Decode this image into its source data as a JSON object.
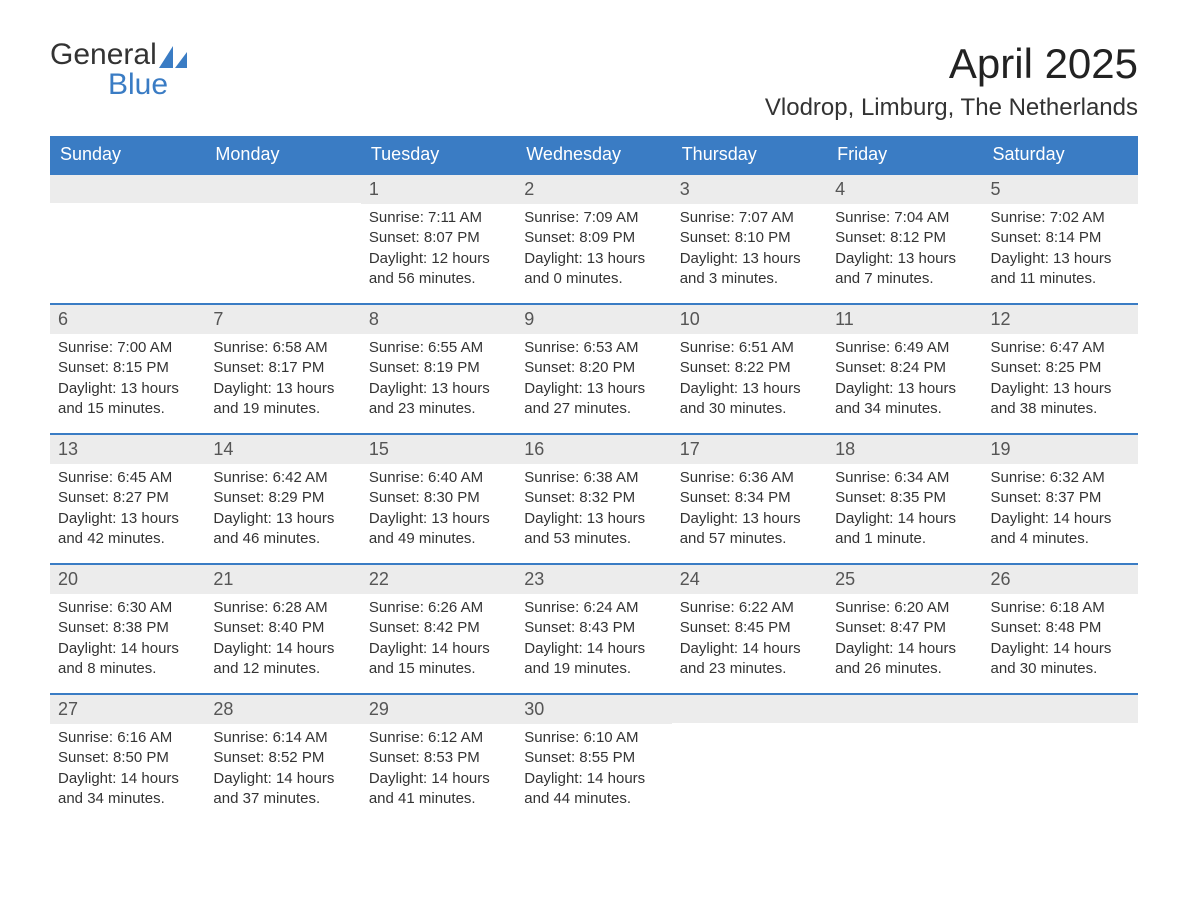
{
  "logo": {
    "word1": "General",
    "word2": "Blue",
    "sail_color": "#3a7cc4"
  },
  "header": {
    "month_title": "April 2025",
    "location": "Vlodrop, Limburg, The Netherlands"
  },
  "colors": {
    "header_bg": "#3a7cc4",
    "daynum_bg": "#ececec",
    "week_border": "#3a7cc4",
    "page_bg": "#ffffff",
    "text": "#333333",
    "muted": "#555555"
  },
  "weekdays": [
    "Sunday",
    "Monday",
    "Tuesday",
    "Wednesday",
    "Thursday",
    "Friday",
    "Saturday"
  ],
  "weeks": [
    [
      {
        "num": "",
        "sunrise": "",
        "sunset": "",
        "daylight1": "",
        "daylight2": ""
      },
      {
        "num": "",
        "sunrise": "",
        "sunset": "",
        "daylight1": "",
        "daylight2": ""
      },
      {
        "num": "1",
        "sunrise": "Sunrise: 7:11 AM",
        "sunset": "Sunset: 8:07 PM",
        "daylight1": "Daylight: 12 hours",
        "daylight2": "and 56 minutes."
      },
      {
        "num": "2",
        "sunrise": "Sunrise: 7:09 AM",
        "sunset": "Sunset: 8:09 PM",
        "daylight1": "Daylight: 13 hours",
        "daylight2": "and 0 minutes."
      },
      {
        "num": "3",
        "sunrise": "Sunrise: 7:07 AM",
        "sunset": "Sunset: 8:10 PM",
        "daylight1": "Daylight: 13 hours",
        "daylight2": "and 3 minutes."
      },
      {
        "num": "4",
        "sunrise": "Sunrise: 7:04 AM",
        "sunset": "Sunset: 8:12 PM",
        "daylight1": "Daylight: 13 hours",
        "daylight2": "and 7 minutes."
      },
      {
        "num": "5",
        "sunrise": "Sunrise: 7:02 AM",
        "sunset": "Sunset: 8:14 PM",
        "daylight1": "Daylight: 13 hours",
        "daylight2": "and 11 minutes."
      }
    ],
    [
      {
        "num": "6",
        "sunrise": "Sunrise: 7:00 AM",
        "sunset": "Sunset: 8:15 PM",
        "daylight1": "Daylight: 13 hours",
        "daylight2": "and 15 minutes."
      },
      {
        "num": "7",
        "sunrise": "Sunrise: 6:58 AM",
        "sunset": "Sunset: 8:17 PM",
        "daylight1": "Daylight: 13 hours",
        "daylight2": "and 19 minutes."
      },
      {
        "num": "8",
        "sunrise": "Sunrise: 6:55 AM",
        "sunset": "Sunset: 8:19 PM",
        "daylight1": "Daylight: 13 hours",
        "daylight2": "and 23 minutes."
      },
      {
        "num": "9",
        "sunrise": "Sunrise: 6:53 AM",
        "sunset": "Sunset: 8:20 PM",
        "daylight1": "Daylight: 13 hours",
        "daylight2": "and 27 minutes."
      },
      {
        "num": "10",
        "sunrise": "Sunrise: 6:51 AM",
        "sunset": "Sunset: 8:22 PM",
        "daylight1": "Daylight: 13 hours",
        "daylight2": "and 30 minutes."
      },
      {
        "num": "11",
        "sunrise": "Sunrise: 6:49 AM",
        "sunset": "Sunset: 8:24 PM",
        "daylight1": "Daylight: 13 hours",
        "daylight2": "and 34 minutes."
      },
      {
        "num": "12",
        "sunrise": "Sunrise: 6:47 AM",
        "sunset": "Sunset: 8:25 PM",
        "daylight1": "Daylight: 13 hours",
        "daylight2": "and 38 minutes."
      }
    ],
    [
      {
        "num": "13",
        "sunrise": "Sunrise: 6:45 AM",
        "sunset": "Sunset: 8:27 PM",
        "daylight1": "Daylight: 13 hours",
        "daylight2": "and 42 minutes."
      },
      {
        "num": "14",
        "sunrise": "Sunrise: 6:42 AM",
        "sunset": "Sunset: 8:29 PM",
        "daylight1": "Daylight: 13 hours",
        "daylight2": "and 46 minutes."
      },
      {
        "num": "15",
        "sunrise": "Sunrise: 6:40 AM",
        "sunset": "Sunset: 8:30 PM",
        "daylight1": "Daylight: 13 hours",
        "daylight2": "and 49 minutes."
      },
      {
        "num": "16",
        "sunrise": "Sunrise: 6:38 AM",
        "sunset": "Sunset: 8:32 PM",
        "daylight1": "Daylight: 13 hours",
        "daylight2": "and 53 minutes."
      },
      {
        "num": "17",
        "sunrise": "Sunrise: 6:36 AM",
        "sunset": "Sunset: 8:34 PM",
        "daylight1": "Daylight: 13 hours",
        "daylight2": "and 57 minutes."
      },
      {
        "num": "18",
        "sunrise": "Sunrise: 6:34 AM",
        "sunset": "Sunset: 8:35 PM",
        "daylight1": "Daylight: 14 hours",
        "daylight2": "and 1 minute."
      },
      {
        "num": "19",
        "sunrise": "Sunrise: 6:32 AM",
        "sunset": "Sunset: 8:37 PM",
        "daylight1": "Daylight: 14 hours",
        "daylight2": "and 4 minutes."
      }
    ],
    [
      {
        "num": "20",
        "sunrise": "Sunrise: 6:30 AM",
        "sunset": "Sunset: 8:38 PM",
        "daylight1": "Daylight: 14 hours",
        "daylight2": "and 8 minutes."
      },
      {
        "num": "21",
        "sunrise": "Sunrise: 6:28 AM",
        "sunset": "Sunset: 8:40 PM",
        "daylight1": "Daylight: 14 hours",
        "daylight2": "and 12 minutes."
      },
      {
        "num": "22",
        "sunrise": "Sunrise: 6:26 AM",
        "sunset": "Sunset: 8:42 PM",
        "daylight1": "Daylight: 14 hours",
        "daylight2": "and 15 minutes."
      },
      {
        "num": "23",
        "sunrise": "Sunrise: 6:24 AM",
        "sunset": "Sunset: 8:43 PM",
        "daylight1": "Daylight: 14 hours",
        "daylight2": "and 19 minutes."
      },
      {
        "num": "24",
        "sunrise": "Sunrise: 6:22 AM",
        "sunset": "Sunset: 8:45 PM",
        "daylight1": "Daylight: 14 hours",
        "daylight2": "and 23 minutes."
      },
      {
        "num": "25",
        "sunrise": "Sunrise: 6:20 AM",
        "sunset": "Sunset: 8:47 PM",
        "daylight1": "Daylight: 14 hours",
        "daylight2": "and 26 minutes."
      },
      {
        "num": "26",
        "sunrise": "Sunrise: 6:18 AM",
        "sunset": "Sunset: 8:48 PM",
        "daylight1": "Daylight: 14 hours",
        "daylight2": "and 30 minutes."
      }
    ],
    [
      {
        "num": "27",
        "sunrise": "Sunrise: 6:16 AM",
        "sunset": "Sunset: 8:50 PM",
        "daylight1": "Daylight: 14 hours",
        "daylight2": "and 34 minutes."
      },
      {
        "num": "28",
        "sunrise": "Sunrise: 6:14 AM",
        "sunset": "Sunset: 8:52 PM",
        "daylight1": "Daylight: 14 hours",
        "daylight2": "and 37 minutes."
      },
      {
        "num": "29",
        "sunrise": "Sunrise: 6:12 AM",
        "sunset": "Sunset: 8:53 PM",
        "daylight1": "Daylight: 14 hours",
        "daylight2": "and 41 minutes."
      },
      {
        "num": "30",
        "sunrise": "Sunrise: 6:10 AM",
        "sunset": "Sunset: 8:55 PM",
        "daylight1": "Daylight: 14 hours",
        "daylight2": "and 44 minutes."
      },
      {
        "num": "",
        "sunrise": "",
        "sunset": "",
        "daylight1": "",
        "daylight2": ""
      },
      {
        "num": "",
        "sunrise": "",
        "sunset": "",
        "daylight1": "",
        "daylight2": ""
      },
      {
        "num": "",
        "sunrise": "",
        "sunset": "",
        "daylight1": "",
        "daylight2": ""
      }
    ]
  ]
}
